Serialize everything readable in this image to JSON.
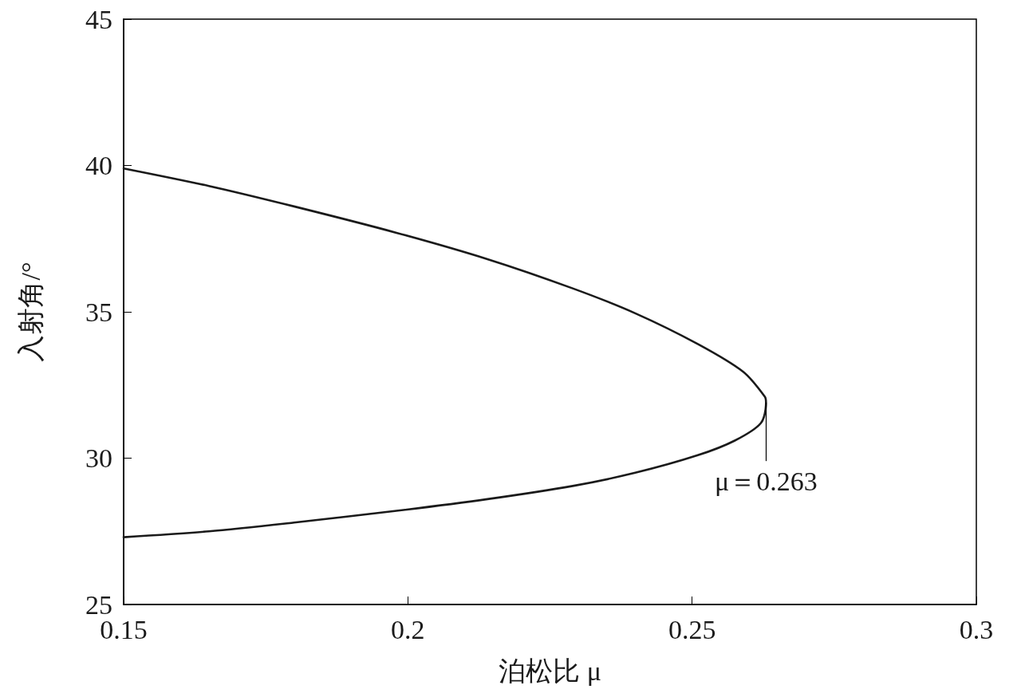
{
  "chart_data": {
    "type": "line",
    "xlabel": "泊松比 μ",
    "ylabel": "入射角/°",
    "xlim": [
      0.15,
      0.3
    ],
    "xticks": [
      0.15,
      0.2,
      0.25,
      0.3
    ],
    "ylim": [
      25,
      45
    ],
    "yticks": [
      25,
      30,
      35,
      40,
      45
    ],
    "marker": "none",
    "line_style": "solid",
    "annotations": [
      {
        "text": "μ＝0.263",
        "x": 0.263,
        "y": 31.9
      }
    ],
    "series": [
      {
        "color": "#1a1a1a",
        "x": [
          0.15,
          0.165,
          0.18,
          0.198,
          0.214,
          0.229,
          0.24,
          0.251,
          0.259,
          0.2628,
          0.263,
          0.2621,
          0.2575,
          0.251,
          0.24,
          0.229,
          0.214,
          0.198,
          0.18,
          0.165,
          0.15
        ],
        "values": [
          39.9,
          39.3,
          38.6,
          37.7,
          36.8,
          35.8,
          34.95,
          33.9,
          32.95,
          32.1,
          31.9,
          31.2,
          30.6,
          30.1,
          29.5,
          29.05,
          28.6,
          28.2,
          27.8,
          27.5,
          27.3
        ]
      }
    ]
  }
}
